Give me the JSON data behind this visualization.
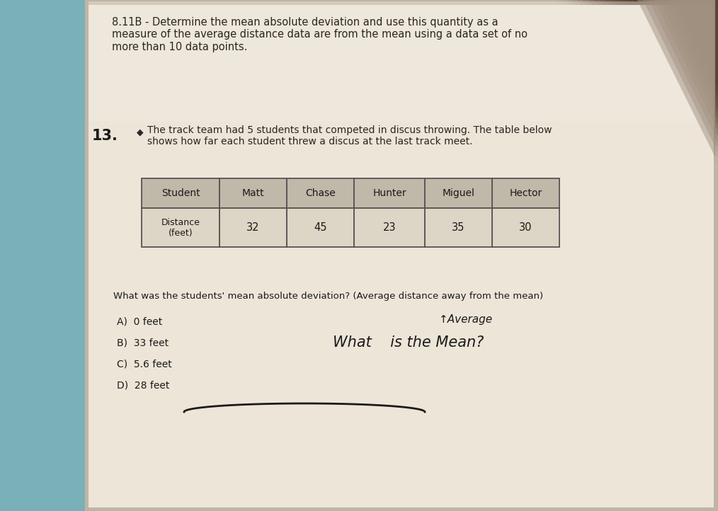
{
  "bg_color_left": "#8ab0b8",
  "bg_color_main": "#c8bfb0",
  "bg_color_top_right": "#7a6a5a",
  "paper_color": "#ede5d8",
  "paper_shadow": "#b8a898",
  "title_text": "8.11B - Determine the mean absolute deviation and use this quantity as a\nmeasure of the average distance data are from the mean using a data set of no\nmore than 10 data points.",
  "problem_number": "13.",
  "bullet_text": "The track team had 5 students that competed in discus throwing. The table below\nshows how far each student threw a discus at the last track meet.",
  "table_headers": [
    "Student",
    "Matt",
    "Chase",
    "Hunter",
    "Miguel",
    "Hector"
  ],
  "table_row1_label": "Distance\n(feet)",
  "table_row1_values": [
    "32",
    "45",
    "23",
    "35",
    "30"
  ],
  "question_text": "What was the students' mean absolute deviation? (Average distance away from the mean)",
  "choices": [
    "A)  0 feet",
    "B)  33 feet",
    "C)  5.6 feet",
    "D)  28 feet"
  ],
  "handwritten_text1": "What    is the Mean?",
  "handwritten_text2": "↑Average",
  "title_fontsize": 10.5,
  "body_fontsize": 10,
  "table_fontsize": 10,
  "header_cell_color": "#c0b8a8",
  "data_cell_color": "#ddd5c5",
  "text_color": "#2a2520",
  "table_border_color": "#555555"
}
